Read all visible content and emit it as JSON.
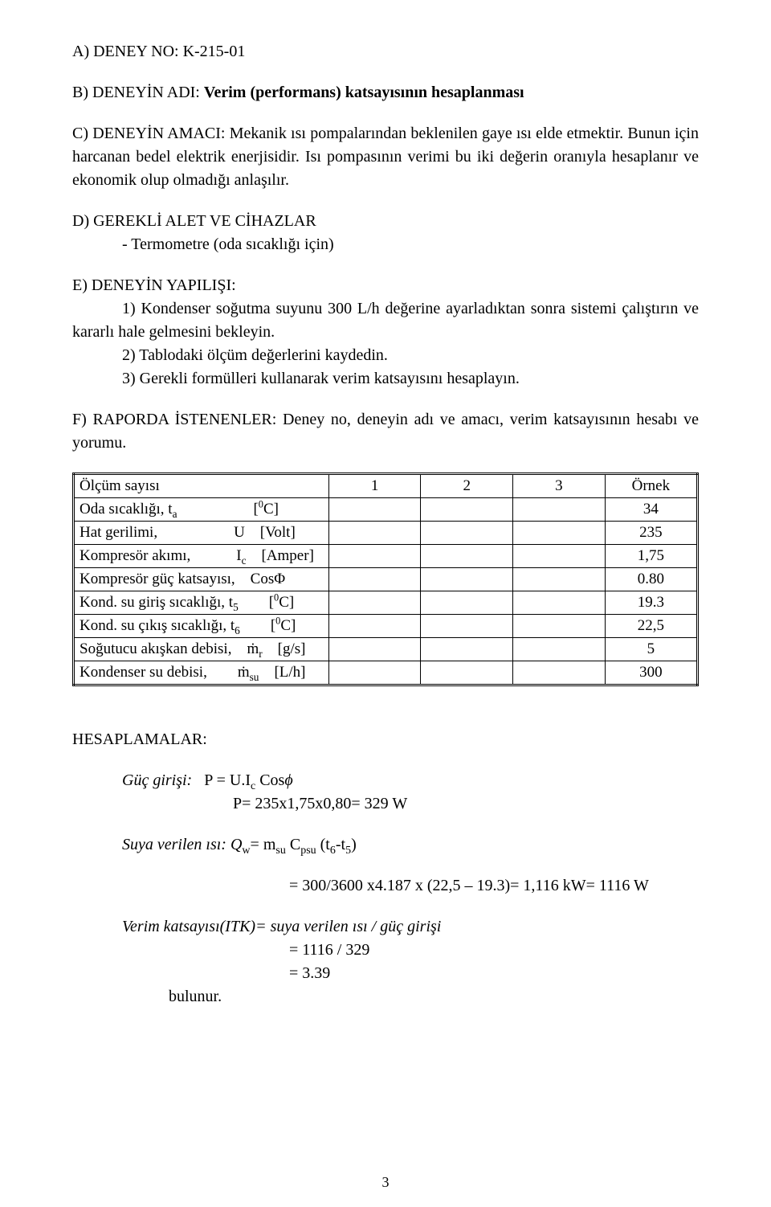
{
  "header": {
    "a_label": "A) DENEY NO: ",
    "a_value": "K-215-01",
    "b_label": "B) DENEYİN ADI: ",
    "b_value": "Verim (performans) katsayısının hesaplanması",
    "c_label": "C) DENEYİN AMACI: ",
    "c_value": "Mekanik ısı pompalarından beklenilen gaye ısı elde etmektir. Bunun için harcanan bedel elektrik enerjisidir. Isı pompasının verimi bu iki değerin oranıyla hesaplanır ve ekonomik olup olmadığı anlaşılır.",
    "d_label": "D) GEREKLİ ALET VE CİHAZLAR",
    "d_item1": "- Termometre (oda sıcaklığı için)",
    "e_label": "E) DENEYİN YAPILIŞI:",
    "e_item1": "1) Kondenser soğutma suyunu 300 L/h değerine ayarladıktan sonra sistemi çalıştırın ve kararlı hale gelmesini bekleyin.",
    "e_item2": "2) Tablodaki ölçüm değerlerini kaydedin.",
    "e_item3": "3) Gerekli formülleri kullanarak verim katsayısını hesaplayın.",
    "f_label": "F) RAPORDA İSTENENLER: ",
    "f_value": "Deney no, deneyin adı ve amacı, verim katsayısının hesabı ve yorumu."
  },
  "table": {
    "headers": [
      "Ölçüm sayısı",
      "1",
      "2",
      "3",
      "Örnek"
    ],
    "rows": [
      {
        "label_html": "Oda sıcaklığı, t<span class='sub'>a</span>     [<span class='sup'>0</span>C]",
        "v1": "",
        "v2": "",
        "v3": "",
        "ex": "34"
      },
      {
        "label_html": "Hat gerilimi,     U [Volt]",
        "v1": "",
        "v2": "",
        "v3": "",
        "ex": "235"
      },
      {
        "label_html": "Kompresör akımı,   I<span class='sub'>c</span> [Amper]",
        "v1": "",
        "v2": "",
        "v3": "",
        "ex": "1,75"
      },
      {
        "label_html": "Kompresör güç katsayısı, CosΦ",
        "v1": "",
        "v2": "",
        "v3": "",
        "ex": "0.80"
      },
      {
        "label_html": "Kond. su giriş sıcaklığı, t<span class='sub'>5</span>  [<span class='sup'>0</span>C]",
        "v1": "",
        "v2": "",
        "v3": "",
        "ex": "19.3"
      },
      {
        "label_html": "Kond. su çıkış sıcaklığı, t<span class='sub'>6</span>  [<span class='sup'>0</span>C]",
        "v1": "",
        "v2": "",
        "v3": "",
        "ex": "22,5"
      },
      {
        "label_html": "Soğutucu akışkan debisi, <span class='mdot'>ṁ</span><span class='sub'>r</span> [g/s]",
        "v1": "",
        "v2": "",
        "v3": "",
        "ex": "5"
      },
      {
        "label_html": "Kondenser su debisi,  <span class='mdot'>ṁ</span><span class='sub'>su</span> [L/h]",
        "v1": "",
        "v2": "",
        "v3": "",
        "ex": "300"
      }
    ]
  },
  "calc": {
    "title": "HESAPLAMALAR:",
    "guc_label": "Güç girişi:",
    "guc_formula": "P = U.I",
    "guc_sub": "c",
    "guc_after": " Cos",
    "guc_phi": "ϕ",
    "guc_line2": "P= 235x1,75x0,80= 329 W",
    "suya_label": "Suya verilen ısı:",
    "suya_formula_left": " Q",
    "suya_qw_sub": "w",
    "suya_eq": "= m",
    "suya_m_sub": "su",
    "suya_mid": "  C",
    "suya_c_sub": "psu",
    "suya_t": " (t",
    "suya_t6": "6",
    "suya_dash": "-t",
    "suya_t5": "5",
    "suya_close": ")",
    "suya_result": "= 300/3600 x4.187 x (22,5 – 19.3)= 1,116 kW= 1116 W",
    "verim_label": "Verim katsayısı(ITK)=",
    "verim_expr": " suya verilen ısı / güç girişi",
    "verim_line2": "= 1116 / 329",
    "verim_line3": "= 3.39",
    "bulunur": "bulunur."
  },
  "pagenum": "3"
}
